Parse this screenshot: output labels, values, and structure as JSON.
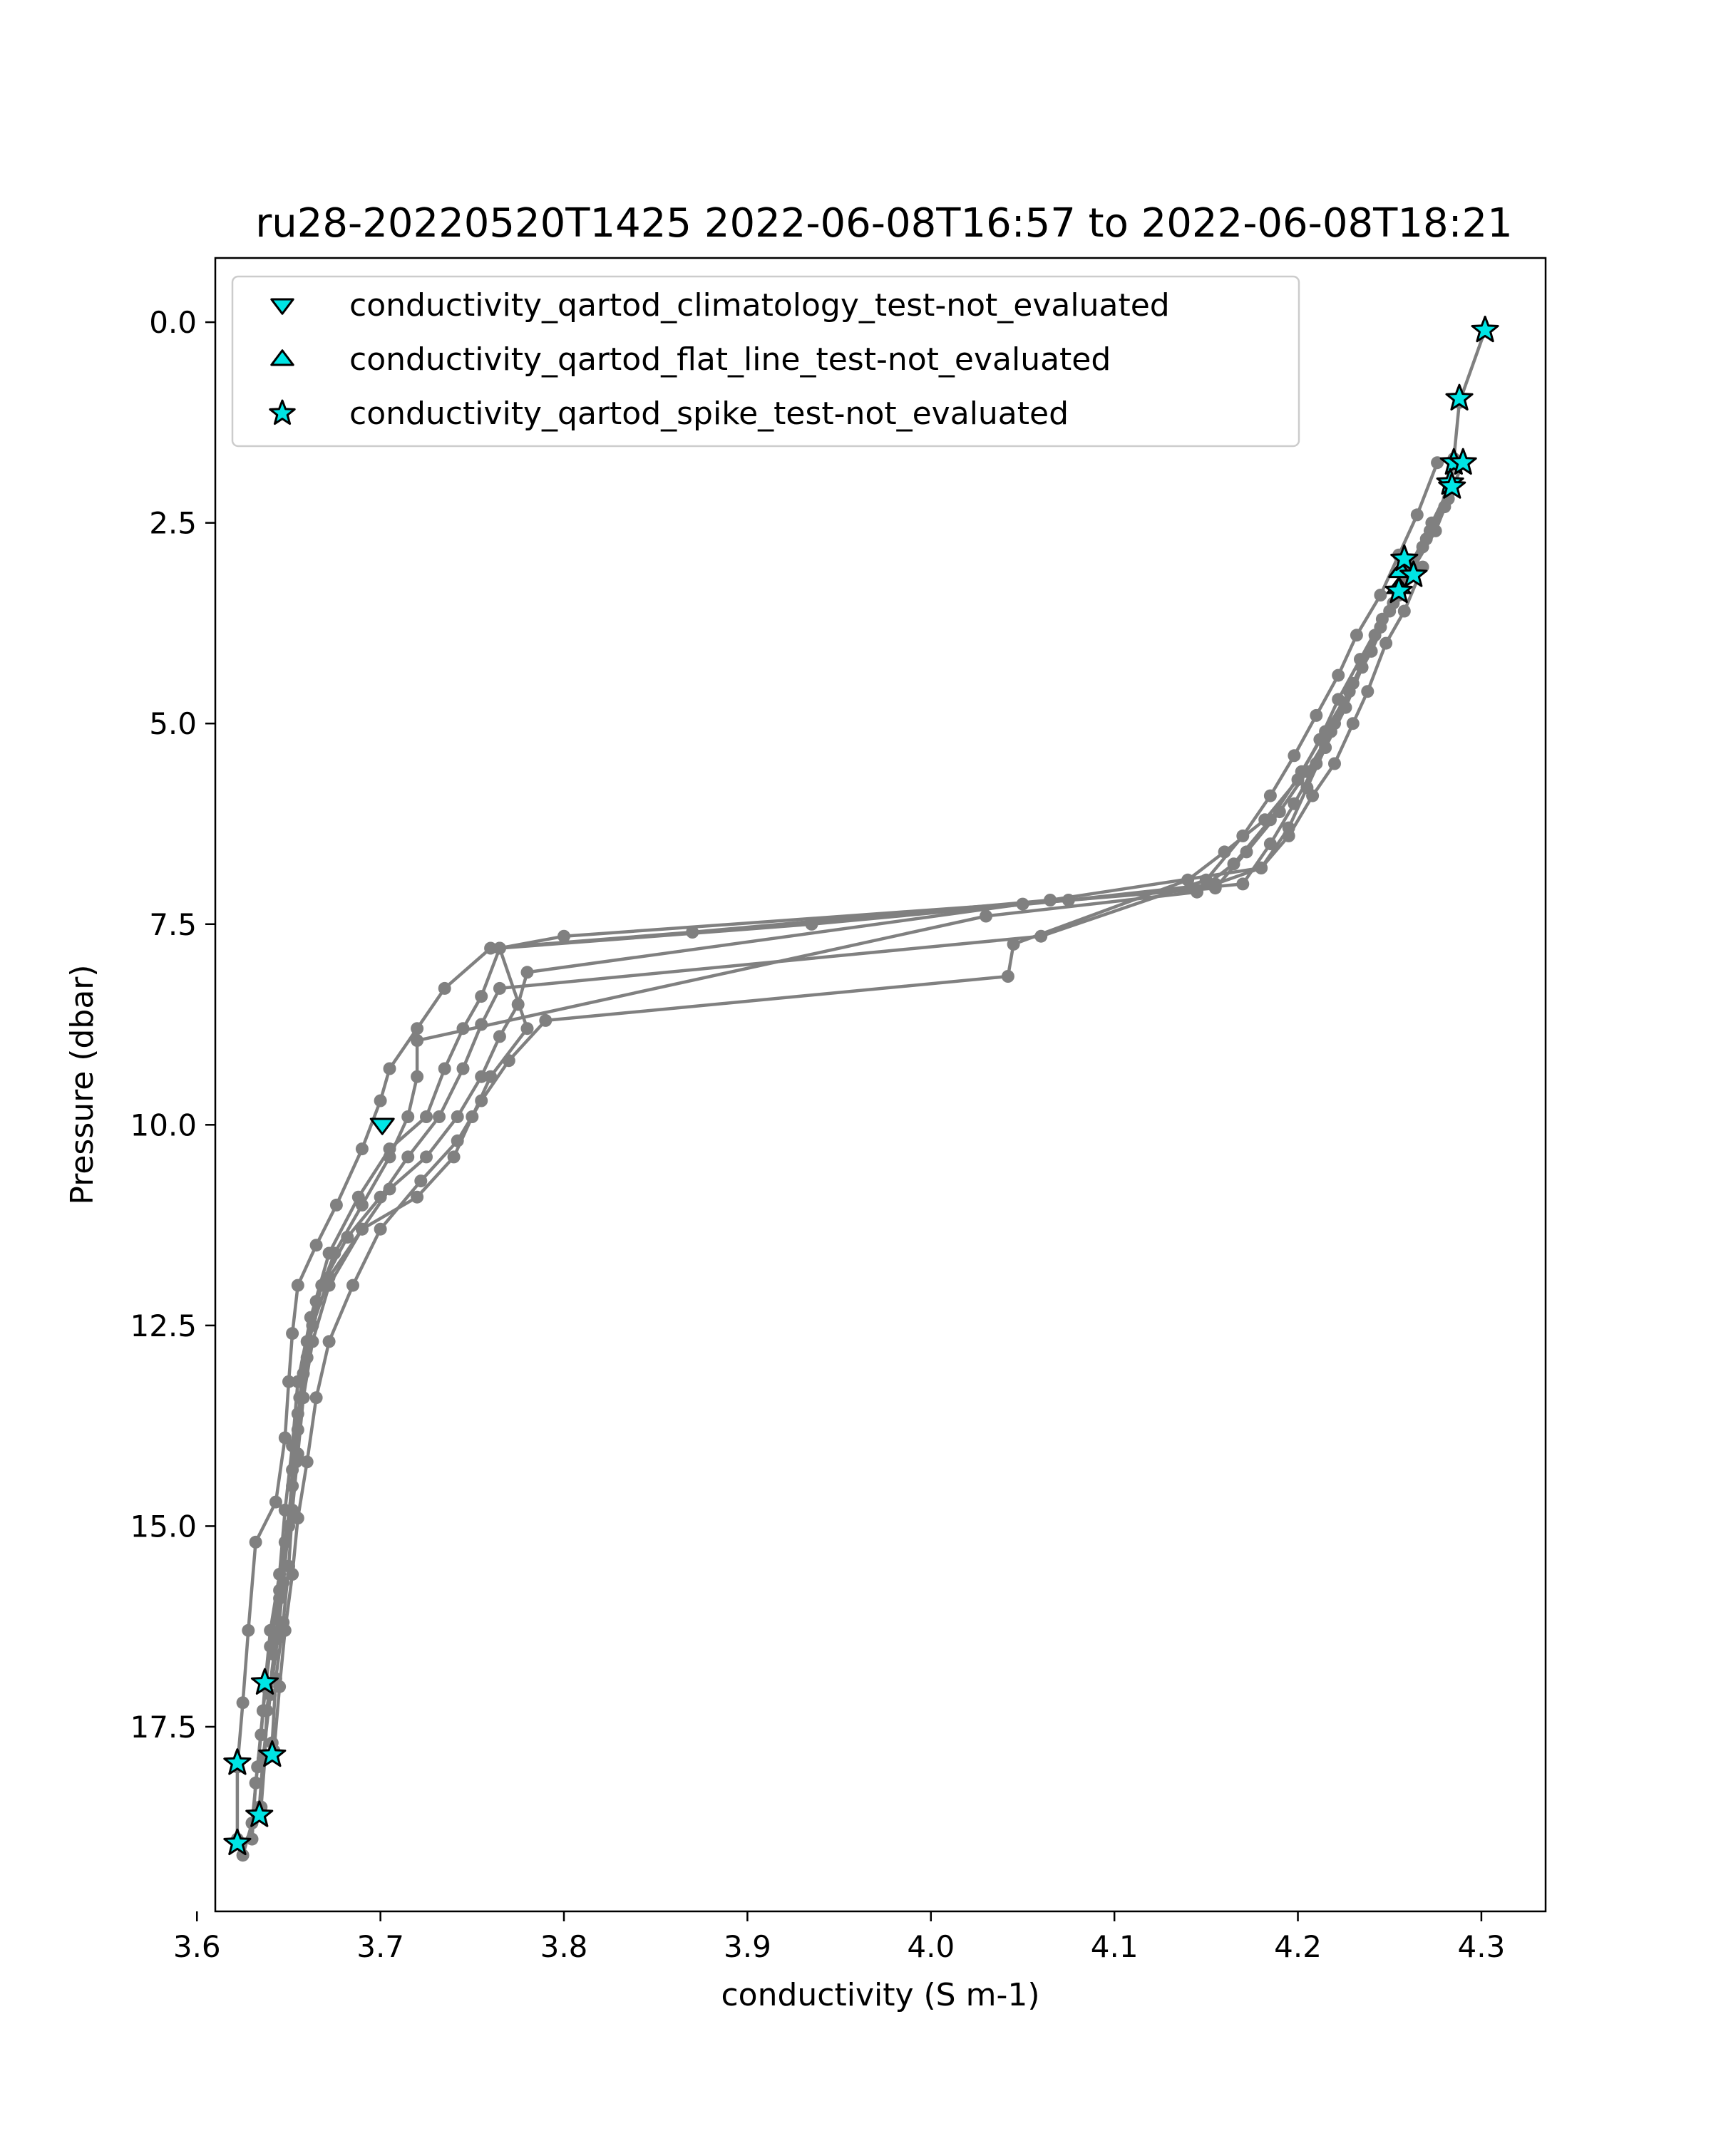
{
  "chart_data": {
    "type": "scatter",
    "title": "ru28-20220520T1425 2022-06-08T16:57 to 2022-06-08T18:21",
    "xlabel": "conductivity (S m-1)",
    "ylabel": "Pressure (dbar)",
    "xlim": [
      3.61,
      4.335
    ],
    "ylim": [
      19.8,
      -0.8
    ],
    "y_inverted": true,
    "xticks": [
      "3.6",
      "3.7",
      "3.8",
      "3.9",
      "4.0",
      "4.1",
      "4.2",
      "4.3"
    ],
    "yticks": [
      "0.0",
      "2.5",
      "5.0",
      "7.5",
      "10.0",
      "12.5",
      "15.0",
      "17.5"
    ],
    "grid": false,
    "legend_position": "top-left",
    "colors": {
      "profile_line": "#808080",
      "flag_fill": "#00e5e5",
      "flag_edge": "#000000"
    },
    "series": [
      {
        "name": "conductivity profiles",
        "type": "line",
        "profiles": [
          [
            [
              4.302,
              0.1
            ],
            [
              4.288,
              1.0
            ],
            [
              4.285,
              1.7
            ],
            [
              4.282,
              2.2
            ],
            [
              4.275,
              2.6
            ],
            [
              4.262,
              3.1
            ],
            [
              4.255,
              3.4
            ],
            [
              4.245,
              3.8
            ],
            [
              4.235,
              4.3
            ],
            [
              4.226,
              4.8
            ],
            [
              4.215,
              5.3
            ],
            [
              4.205,
              5.8
            ],
            [
              4.195,
              6.3
            ],
            [
              4.18,
              6.8
            ],
            [
              4.065,
              7.2
            ],
            [
              3.87,
              7.6
            ],
            [
              3.76,
              7.8
            ],
            [
              3.735,
              8.3
            ],
            [
              3.72,
              8.8
            ],
            [
              3.705,
              9.3
            ],
            [
              3.7,
              9.7
            ],
            [
              3.69,
              10.3
            ],
            [
              3.676,
              11.0
            ],
            [
              3.665,
              11.5
            ],
            [
              3.655,
              12.0
            ],
            [
              3.652,
              12.6
            ],
            [
              3.65,
              13.2
            ],
            [
              3.648,
              13.9
            ],
            [
              3.643,
              14.7
            ],
            [
              3.632,
              15.2
            ],
            [
              3.628,
              16.3
            ],
            [
              3.625,
              17.2
            ],
            [
              3.622,
              18.0
            ],
            [
              3.622,
              18.9
            ]
          ],
          [
            [
              4.29,
              1.75
            ],
            [
              4.28,
              2.3
            ],
            [
              4.268,
              2.8
            ],
            [
              4.255,
              3.4
            ],
            [
              4.242,
              3.9
            ],
            [
              4.23,
              4.5
            ],
            [
              4.22,
              5.0
            ],
            [
              4.21,
              5.5
            ],
            [
              4.198,
              6.0
            ],
            [
              4.185,
              6.5
            ],
            [
              4.17,
              7.0
            ],
            [
              3.935,
              7.5
            ],
            [
              3.765,
              7.8
            ],
            [
              3.755,
              8.4
            ],
            [
              3.745,
              8.8
            ],
            [
              3.735,
              9.3
            ],
            [
              3.725,
              9.9
            ],
            [
              3.705,
              10.3
            ],
            [
              3.688,
              10.9
            ],
            [
              3.672,
              11.6
            ],
            [
              3.662,
              12.4
            ],
            [
              3.655,
              13.2
            ],
            [
              3.652,
              14.0
            ],
            [
              3.648,
              14.8
            ],
            [
              3.645,
              15.6
            ],
            [
              3.64,
              16.3
            ],
            [
              3.637,
              17.0
            ],
            [
              3.635,
              17.6
            ],
            [
              3.632,
              18.2
            ],
            [
              3.63,
              18.9
            ]
          ],
          [
            [
              4.284,
              2.0
            ],
            [
              4.273,
              2.5
            ],
            [
              4.262,
              3.0
            ],
            [
              4.252,
              3.5
            ],
            [
              4.24,
              4.1
            ],
            [
              4.228,
              4.6
            ],
            [
              4.218,
              5.1
            ],
            [
              4.205,
              5.6
            ],
            [
              4.19,
              6.1
            ],
            [
              4.172,
              6.6
            ],
            [
              4.155,
              7.05
            ],
            [
              4.05,
              7.25
            ],
            [
              3.78,
              8.1
            ],
            [
              3.775,
              8.5
            ],
            [
              3.765,
              8.9
            ],
            [
              3.755,
              9.4
            ],
            [
              3.742,
              9.9
            ],
            [
              3.725,
              10.4
            ],
            [
              3.705,
              10.8
            ],
            [
              3.69,
              11.3
            ],
            [
              3.672,
              12.0
            ],
            [
              3.663,
              12.7
            ],
            [
              3.658,
              13.4
            ],
            [
              3.655,
              14.1
            ],
            [
              3.652,
              14.8
            ],
            [
              3.65,
              15.5
            ],
            [
              3.647,
              16.2
            ],
            [
              3.643,
              16.9
            ],
            [
              3.641,
              17.7
            ]
          ],
          [
            [
              4.283,
              2.1
            ],
            [
              4.27,
              2.7
            ],
            [
              4.258,
              3.2
            ],
            [
              4.246,
              3.7
            ],
            [
              4.234,
              4.2
            ],
            [
              4.222,
              4.7
            ],
            [
              4.212,
              5.2
            ],
            [
              4.2,
              5.7
            ],
            [
              4.182,
              6.2
            ],
            [
              4.16,
              6.6
            ],
            [
              4.14,
              6.95
            ],
            [
              4.045,
              7.75
            ],
            [
              4.042,
              8.15
            ],
            [
              3.79,
              8.7
            ],
            [
              3.77,
              9.2
            ],
            [
              3.755,
              9.7
            ],
            [
              3.742,
              10.2
            ],
            [
              3.722,
              10.7
            ],
            [
              3.7,
              11.3
            ],
            [
              3.685,
              12.0
            ],
            [
              3.672,
              12.7
            ],
            [
              3.665,
              13.4
            ],
            [
              3.66,
              14.2
            ],
            [
              3.655,
              14.9
            ],
            [
              3.652,
              15.6
            ],
            [
              3.648,
              16.3
            ],
            [
              3.645,
              17.0
            ],
            [
              3.642,
              17.8
            ]
          ],
          [
            [
              4.276,
              1.75
            ],
            [
              4.265,
              2.4
            ],
            [
              4.255,
              2.9
            ],
            [
              4.245,
              3.4
            ],
            [
              4.232,
              3.9
            ],
            [
              4.222,
              4.4
            ],
            [
              4.21,
              4.9
            ],
            [
              4.198,
              5.4
            ],
            [
              4.185,
              5.9
            ],
            [
              4.17,
              6.4
            ],
            [
              4.15,
              6.95
            ],
            [
              4.06,
              7.65
            ],
            [
              3.765,
              8.3
            ],
            [
              3.755,
              8.75
            ],
            [
              3.745,
              9.3
            ],
            [
              3.732,
              9.9
            ],
            [
              3.715,
              10.4
            ],
            [
              3.7,
              10.9
            ],
            [
              3.682,
              11.4
            ],
            [
              3.668,
              12.0
            ],
            [
              3.66,
              12.7
            ],
            [
              3.656,
              13.4
            ],
            [
              3.654,
              14.2
            ],
            [
              3.65,
              15.0
            ],
            [
              3.647,
              15.7
            ],
            [
              3.644,
              16.4
            ],
            [
              3.64,
              17.1
            ],
            [
              3.636,
              17.9
            ],
            [
              3.634,
              18.5
            ]
          ],
          [
            [
              4.272,
              2.6
            ],
            [
              4.262,
              3.1
            ],
            [
              4.25,
              3.6
            ],
            [
              4.24,
              4.1
            ],
            [
              4.228,
              4.6
            ],
            [
              4.215,
              5.1
            ],
            [
              4.202,
              5.6
            ],
            [
              4.185,
              6.2
            ],
            [
              4.165,
              6.75
            ],
            [
              4.145,
              7.1
            ],
            [
              4.03,
              7.4
            ],
            [
              3.72,
              8.95
            ],
            [
              3.72,
              9.4
            ],
            [
              3.715,
              9.9
            ],
            [
              3.705,
              10.4
            ],
            [
              3.69,
              11.0
            ],
            [
              3.675,
              11.6
            ],
            [
              3.665,
              12.2
            ],
            [
              3.66,
              12.9
            ],
            [
              3.655,
              13.6
            ],
            [
              3.652,
              14.3
            ],
            [
              3.65,
              15.0
            ],
            [
              3.645,
              15.8
            ],
            [
              3.64,
              16.5
            ],
            [
              3.636,
              17.3
            ],
            [
              3.633,
              18.0
            ],
            [
              3.63,
              18.7
            ],
            [
              3.625,
              19.1
            ]
          ],
          [
            [
              4.268,
              3.05
            ],
            [
              4.258,
              3.6
            ],
            [
              4.248,
              4.0
            ],
            [
              4.238,
              4.6
            ],
            [
              4.23,
              5.0
            ],
            [
              4.22,
              5.5
            ],
            [
              4.208,
              5.9
            ],
            [
              4.195,
              6.4
            ],
            [
              4.18,
              6.8
            ],
            [
              4.155,
              7.0
            ],
            [
              4.075,
              7.2
            ],
            [
              3.8,
              7.65
            ],
            [
              3.765,
              7.8
            ],
            [
              3.78,
              8.8
            ],
            [
              3.76,
              9.4
            ],
            [
              3.75,
              9.9
            ],
            [
              3.74,
              10.4
            ],
            [
              3.72,
              10.9
            ],
            [
              3.69,
              11.3
            ],
            [
              3.672,
              11.9
            ],
            [
              3.663,
              12.5
            ],
            [
              3.658,
              13.1
            ],
            [
              3.655,
              13.8
            ],
            [
              3.652,
              14.5
            ],
            [
              3.648,
              15.2
            ],
            [
              3.645,
              15.9
            ],
            [
              3.642,
              16.6
            ],
            [
              3.638,
              17.3
            ],
            [
              3.637,
              17.9
            ],
            [
              3.635,
              18.5
            ]
          ]
        ]
      },
      {
        "name": "conductivity_qartod_climatology_test-not_evaluated",
        "marker": "triangle-down",
        "points": [
          [
            3.701,
            10.0
          ]
        ]
      },
      {
        "name": "conductivity_qartod_flat_line_test-not_evaluated",
        "marker": "triangle-up",
        "points": [
          [
            4.255,
            3.3
          ],
          [
            4.256,
            3.1
          ]
        ]
      },
      {
        "name": "conductivity_qartod_spike_test-not_evaluated",
        "marker": "star",
        "points": [
          [
            4.302,
            0.1
          ],
          [
            4.288,
            0.95
          ],
          [
            4.285,
            1.75
          ],
          [
            4.29,
            1.75
          ],
          [
            4.283,
            2.0
          ],
          [
            4.284,
            2.05
          ],
          [
            4.258,
            2.95
          ],
          [
            4.263,
            3.15
          ],
          [
            4.255,
            3.35
          ],
          [
            3.637,
            16.95
          ],
          [
            3.622,
            17.95
          ],
          [
            3.641,
            17.85
          ],
          [
            3.634,
            18.6
          ],
          [
            3.622,
            18.95
          ]
        ]
      }
    ]
  }
}
